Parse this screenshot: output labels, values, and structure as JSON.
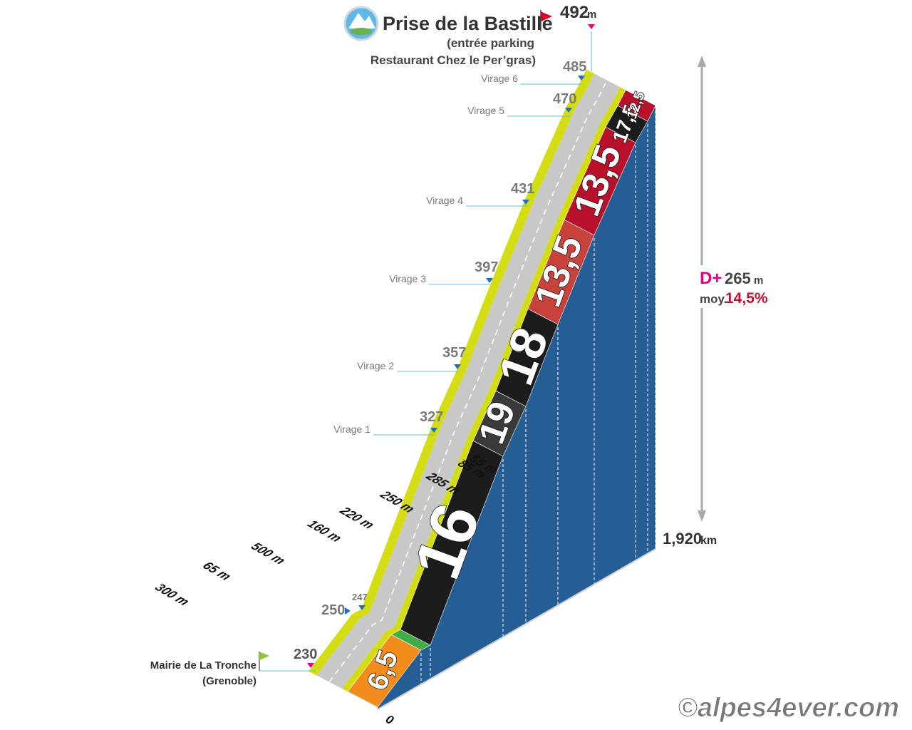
{
  "summit": {
    "name": "Prise de la Bastille",
    "details": [
      "(entrée parking",
      "Restaurant Chez le Per’gras)"
    ],
    "altitude": "492",
    "unit": "m"
  },
  "start": {
    "name": "Mairie de La Tronche",
    "details": "(Grenoble)",
    "altitude": "230"
  },
  "waypoints": [
    {
      "label": "Virage 6",
      "altitude": "485"
    },
    {
      "label": "Virage 5",
      "altitude": "470"
    },
    {
      "label": "Virage 4",
      "altitude": "431"
    },
    {
      "label": "Virage 3",
      "altitude": "397"
    },
    {
      "label": "Virage 2",
      "altitude": "357"
    },
    {
      "label": "Virage 1",
      "altitude": "327"
    },
    {
      "altitude": "250"
    },
    {
      "altitude": "247"
    }
  ],
  "segments": [
    {
      "gradient": "6,5",
      "length": "300 m",
      "color": "#f28c1c"
    },
    {
      "length": "65 m",
      "color": "#3fae49"
    },
    {
      "gradient": "16",
      "length": "500 m",
      "color": "#1c1c1c"
    },
    {
      "gradient": "19",
      "length": "160 m",
      "color": "#3a3a3a"
    },
    {
      "gradient": "18",
      "length": "220 m",
      "color": "#1c1c1c"
    },
    {
      "gradient": "13,5",
      "length": "250 m",
      "color": "#c7423a"
    },
    {
      "gradient": "13,5",
      "length": "285 m",
      "color": "#b8102a"
    },
    {
      "gradient": "17,5",
      "length": "85 m",
      "color": "#1c1c1c"
    },
    {
      "gradient": "12,5",
      "length": "55 m",
      "color": "#b8102a"
    }
  ],
  "distance_origin": "0",
  "total_distance": {
    "value": "1,920",
    "unit": "km"
  },
  "climb": {
    "label": "D+",
    "value": "265",
    "unit": "m",
    "average_label": "moy.",
    "average": "14,5%"
  },
  "credit": "©alpes4ever.com"
}
